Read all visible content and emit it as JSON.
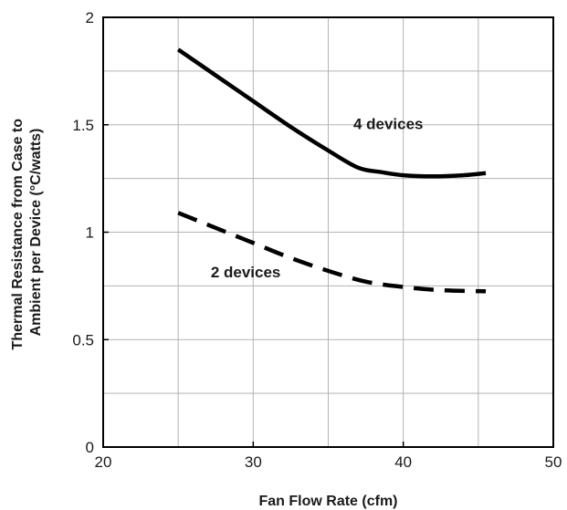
{
  "chart_data": {
    "type": "line",
    "xlabel": "Fan Flow Rate (cfm)",
    "ylabel_lines": [
      "Thermal Resistance from Case to",
      "Ambient per Device (°C/watts)"
    ],
    "xlim": [
      20,
      50
    ],
    "ylim": [
      0,
      2
    ],
    "x_ticks": [
      20,
      30,
      40,
      50
    ],
    "y_ticks": [
      0,
      0.5,
      1,
      1.5,
      2
    ],
    "x_tick_labels": [
      "20",
      "30",
      "40",
      "50"
    ],
    "y_tick_labels": [
      "0",
      "0.5",
      "1",
      "1.5",
      "2"
    ],
    "x_grid_step": 5,
    "y_grid_step": 0.25,
    "grid": true,
    "series": [
      {
        "name": "4 devices",
        "line_style": "solid",
        "x": [
          25,
          27.5,
          30,
          32.5,
          35,
          37,
          38.5,
          40,
          42,
          44,
          45.5
        ],
        "y": [
          1.85,
          1.73,
          1.61,
          1.49,
          1.38,
          1.3,
          1.28,
          1.265,
          1.26,
          1.265,
          1.275
        ]
      },
      {
        "name": "2 devices",
        "line_style": "dashed",
        "x": [
          25,
          27.5,
          30,
          32.5,
          35,
          37.5,
          40,
          42.5,
          45.5
        ],
        "y": [
          1.09,
          1.02,
          0.95,
          0.88,
          0.82,
          0.77,
          0.745,
          0.73,
          0.725
        ]
      }
    ],
    "annotations": [
      {
        "text": "4 devices",
        "x": 39,
        "y": 1.48
      },
      {
        "text": "2 devices",
        "x": 29.5,
        "y": 0.79
      }
    ],
    "colors": {
      "line": "#000000",
      "grid": "#b3b3b3",
      "frame": "#000000"
    }
  }
}
